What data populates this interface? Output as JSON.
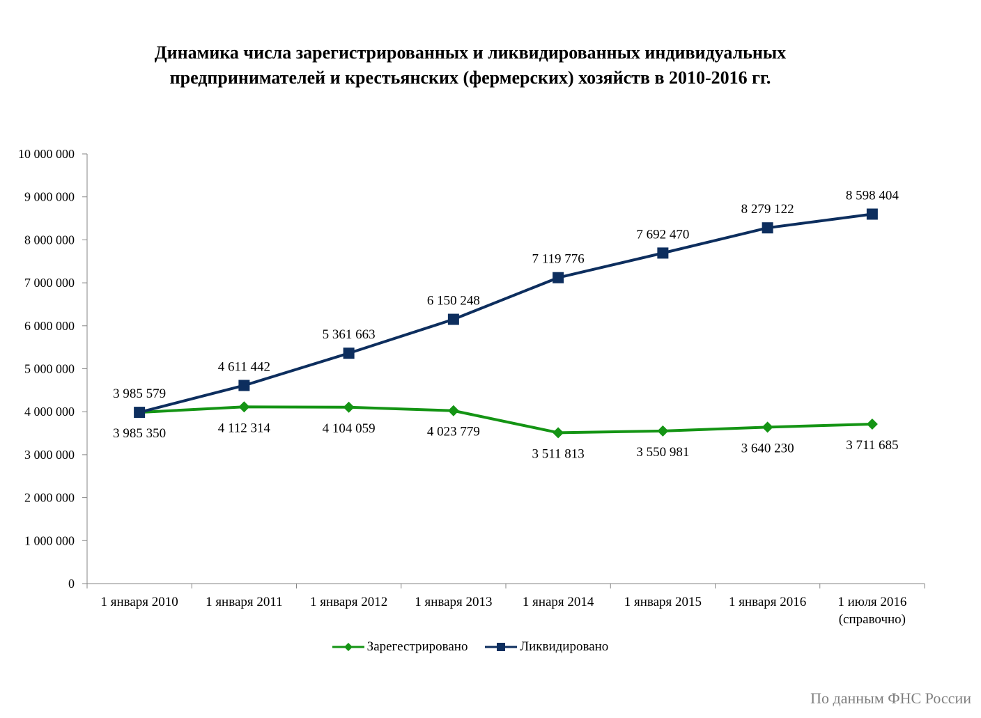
{
  "title": {
    "line1": "Динамика числа зарегистрированных и ликвидированных индивидуальных",
    "line2": "предпринимателей и крестьянских (фермерских) хозяйств в 2010-2016 гг."
  },
  "source": "По данным ФНС России",
  "chart_data": {
    "type": "line",
    "categories": [
      [
        "1  января 2010"
      ],
      [
        "1 января 2011"
      ],
      [
        "1 января 2012"
      ],
      [
        "1 января 2013"
      ],
      [
        "1 янаря 2014"
      ],
      [
        "1  января 2015"
      ],
      [
        "1 января 2016"
      ],
      [
        "1 июля 2016",
        "(справочно)"
      ]
    ],
    "ylim": [
      0,
      10000000
    ],
    "yticks": [
      0,
      1000000,
      2000000,
      3000000,
      4000000,
      5000000,
      6000000,
      7000000,
      8000000,
      9000000,
      10000000
    ],
    "ytick_labels": [
      "0",
      "1 000 000",
      "2 000 000",
      "3 000 000",
      "4 000 000",
      "5 000 000",
      "6 000 000",
      "7 000 000",
      "8 000 000",
      "9 000 000",
      "10 000 000"
    ],
    "grid": false,
    "legend_position": "bottom",
    "series": [
      {
        "name": "Зарегестрировано",
        "color": "#149414",
        "marker": "diamond",
        "values": [
          3985350,
          4112314,
          4104059,
          4023779,
          3511813,
          3550981,
          3640230,
          3711685
        ],
        "labels": [
          "3 985 350",
          "4 112 314",
          "4 104 059",
          "4 023 779",
          "3 511 813",
          "3 550 981",
          "3 640 230",
          "3 711 685"
        ],
        "label_position": "below"
      },
      {
        "name": "Ликвидировано",
        "color": "#0d2e5e",
        "marker": "square",
        "values": [
          3985579,
          4611442,
          5361663,
          6150248,
          7119776,
          7692470,
          8279122,
          8598404
        ],
        "labels": [
          "3 985 579",
          "4 611 442",
          "5 361 663",
          "6 150 248",
          "7 119 776",
          "7 692 470",
          "8 279 122",
          "8 598 404"
        ],
        "label_position": "above"
      }
    ]
  }
}
